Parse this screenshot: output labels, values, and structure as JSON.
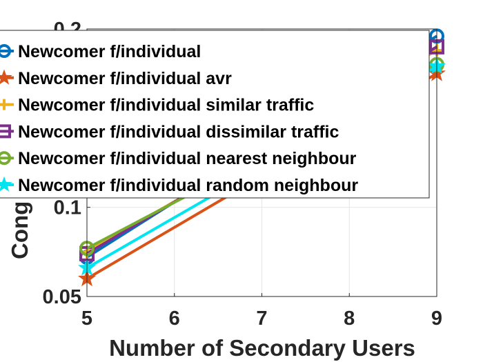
{
  "chart_data": {
    "type": "line",
    "title": "",
    "xlabel": "Number of Secondary Users",
    "ylabel": "Cong",
    "xlim": [
      5,
      9
    ],
    "ylim": [
      0.05,
      0.2
    ],
    "xticks": [
      "5",
      "6",
      "7",
      "8",
      "9"
    ],
    "yticks": [
      "0.05",
      "0.1",
      "0.2"
    ],
    "grid": true,
    "legend_position": "top-left",
    "series": [
      {
        "name": "Newcomer f/individual",
        "color": "#0072BD",
        "marker": "circle",
        "x": [
          5,
          9
        ],
        "y": [
          0.072,
          0.196
        ]
      },
      {
        "name": "Newcomer f/individual avr",
        "color": "#D95319",
        "marker": "star",
        "x": [
          5,
          9
        ],
        "y": [
          0.06,
          0.175
        ]
      },
      {
        "name": "Newcomer f/individual similar traffic",
        "color": "#EDB120",
        "marker": "plus",
        "x": [
          5,
          9
        ],
        "y": [
          0.075,
          0.188
        ]
      },
      {
        "name": "Newcomer f/individual dissimilar traffic",
        "color": "#7E2F8E",
        "marker": "square",
        "x": [
          5,
          9
        ],
        "y": [
          0.074,
          0.19
        ]
      },
      {
        "name": "Newcomer f/individual nearest neighbour",
        "color": "#77AC30",
        "marker": "circle",
        "x": [
          5,
          9
        ],
        "y": [
          0.077,
          0.18
        ]
      },
      {
        "name": "Newcomer f/individual random neighbour",
        "color": "#00E5F0",
        "marker": "star",
        "x": [
          5,
          9
        ],
        "y": [
          0.066,
          0.179
        ]
      }
    ]
  }
}
